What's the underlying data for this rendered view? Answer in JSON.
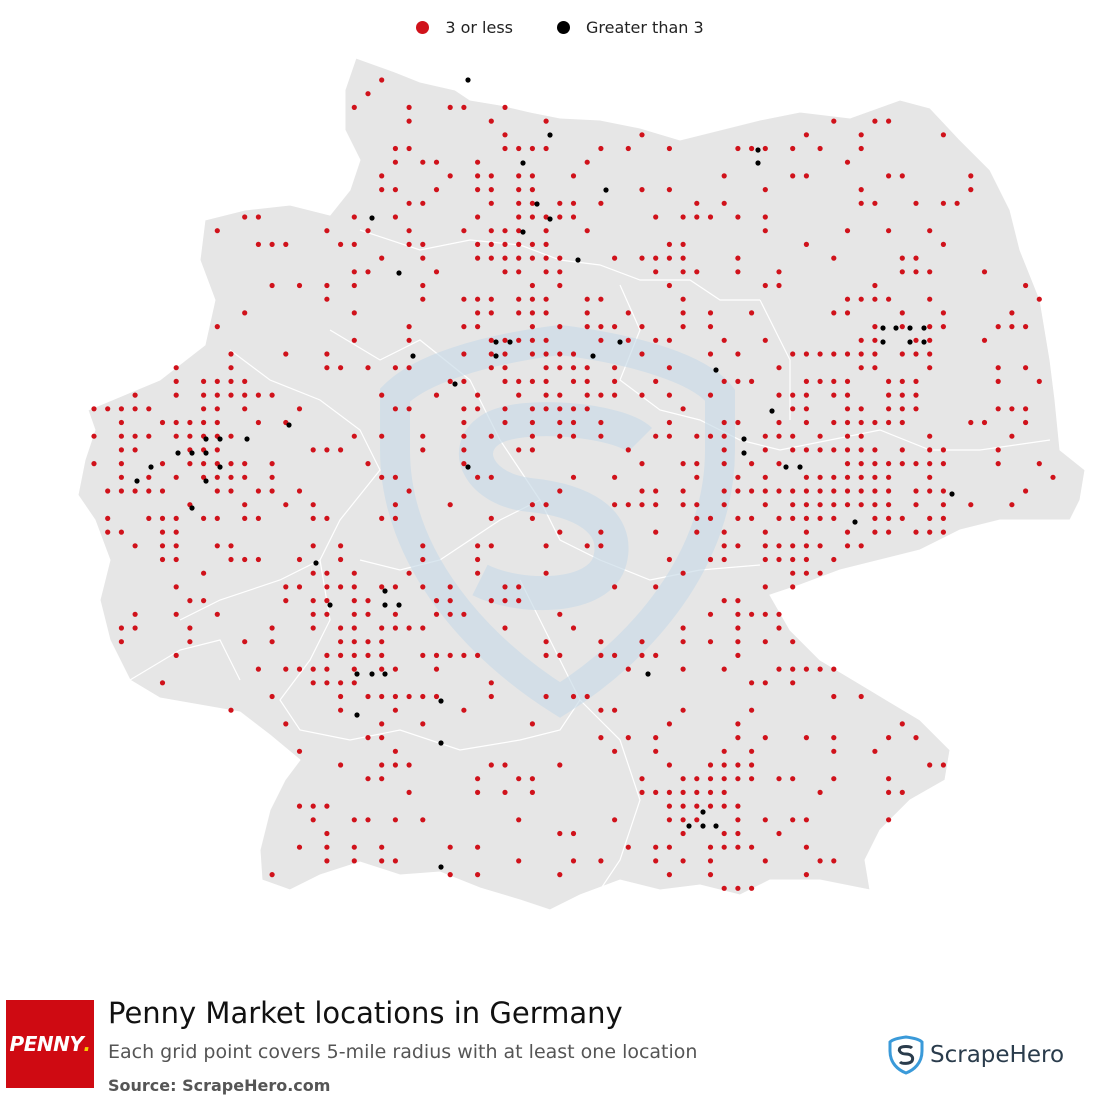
{
  "legend": [
    {
      "label": "3 or less",
      "color": "#d0121b"
    },
    {
      "label": "Greater than 3",
      "color": "#000000"
    }
  ],
  "footer": {
    "logo_text": "PENNY",
    "title": "Penny Market locations in Germany",
    "subtitle": "Each grid point covers 5-mile radius with at least one location",
    "source": "Source: ScrapeHero.com",
    "brand": "ScrapeHero"
  },
  "colors": {
    "land": "#e6e6e6",
    "border": "#ffffff",
    "low": "#d0121b",
    "high": "#000000",
    "watermark": "#c9dbe8"
  }
}
